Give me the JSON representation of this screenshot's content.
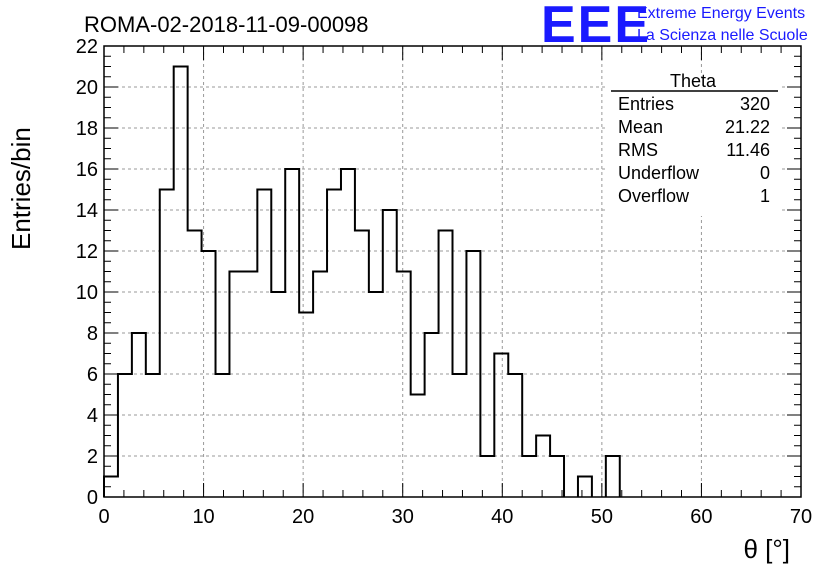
{
  "header": {
    "title": "ROMA-02-2018-11-09-00098",
    "logo_mark": "EEE",
    "logo_line1": "Extreme Energy Events",
    "logo_line2": "La Scienza nelle Scuole"
  },
  "stats_box": {
    "name": "Theta",
    "rows": [
      {
        "label": "Entries",
        "value": "320"
      },
      {
        "label": "Mean",
        "value": "21.22"
      },
      {
        "label": "RMS",
        "value": "11.46"
      },
      {
        "label": "Underflow",
        "value": "0"
      },
      {
        "label": "Overflow",
        "value": "1"
      }
    ]
  },
  "chart_data": {
    "type": "bar",
    "style": "step-histogram",
    "title": "ROMA-02-2018-11-09-00098",
    "xlabel": "θ [°]",
    "ylabel": "Entries/bin",
    "xlim": [
      0,
      70
    ],
    "ylim": [
      0,
      22
    ],
    "bin_width": 1.4,
    "x_ticks": [
      0,
      10,
      20,
      30,
      40,
      50,
      60,
      70
    ],
    "y_ticks": [
      0,
      2,
      4,
      6,
      8,
      10,
      12,
      14,
      16,
      18,
      20,
      22
    ],
    "grid": true,
    "bin_edges_start": [
      0,
      1.4,
      2.8,
      4.2,
      5.6,
      7.0,
      8.4,
      9.8,
      11.2,
      12.6,
      14.0,
      15.4,
      16.8,
      18.2,
      19.6,
      21.0,
      22.4,
      23.8,
      25.2,
      26.6,
      28.0,
      29.4,
      30.8,
      32.2,
      33.6,
      35.0,
      36.4,
      37.8,
      39.2,
      40.6,
      42.0,
      43.4,
      44.8,
      46.2,
      47.6,
      49.0,
      50.4,
      51.8,
      53.2,
      54.6,
      56.0,
      57.4,
      58.8,
      60.2,
      61.6,
      63.0,
      64.4,
      65.8,
      67.2,
      68.6
    ],
    "values": [
      1,
      6,
      8,
      6,
      15,
      21,
      13,
      12,
      6,
      11,
      11,
      15,
      10,
      16,
      9,
      11,
      15,
      16,
      13,
      10,
      14,
      11,
      5,
      8,
      13,
      6,
      12,
      2,
      7,
      6,
      2,
      3,
      2,
      0,
      1,
      0,
      2,
      0,
      0,
      0,
      0,
      0,
      0,
      0,
      0,
      0,
      0,
      0,
      0,
      0
    ]
  }
}
